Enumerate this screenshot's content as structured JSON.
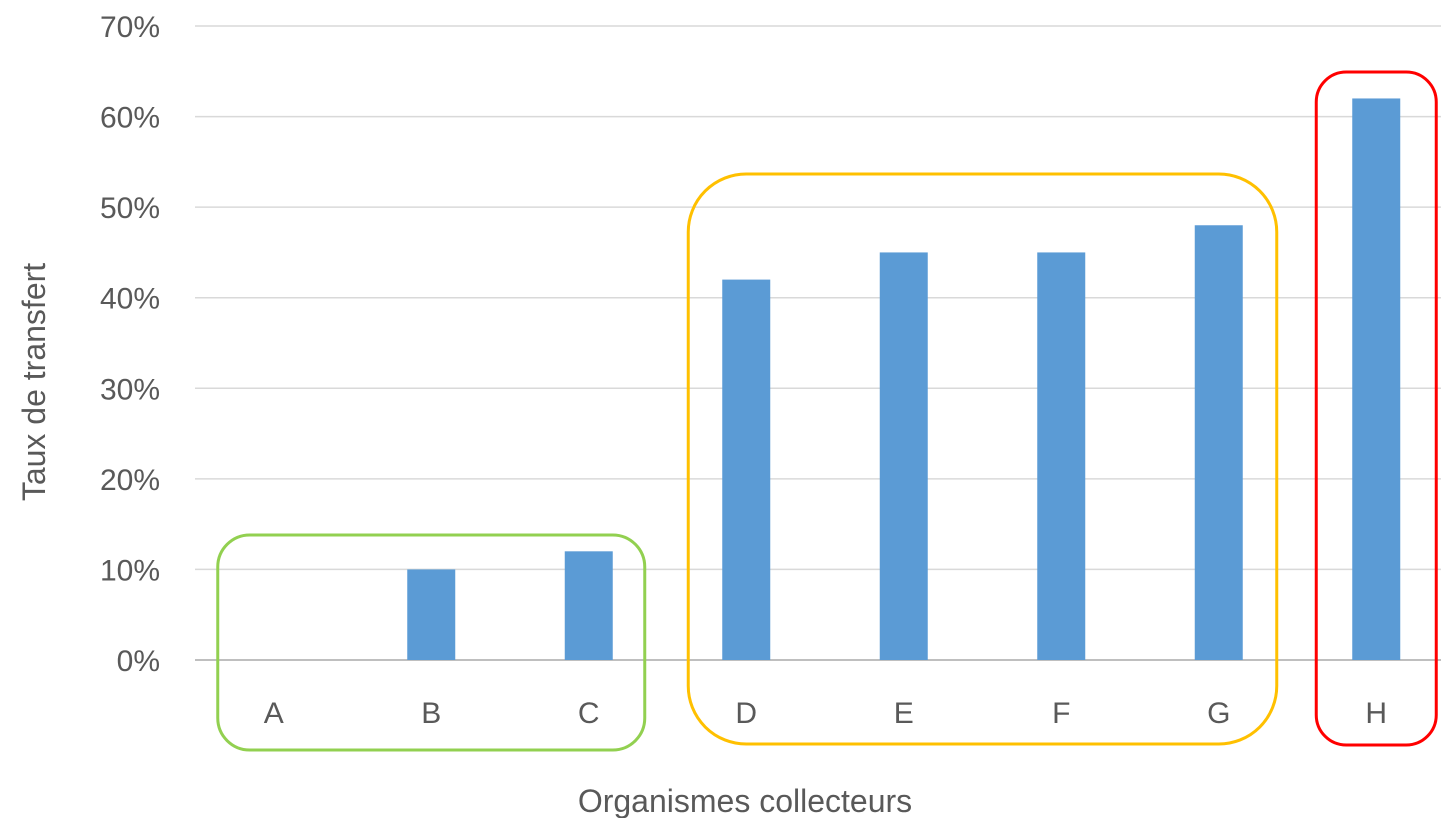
{
  "chart_data": {
    "type": "bar",
    "title": "",
    "xlabel": "Organismes collecteurs",
    "ylabel": "Taux de transfert",
    "categories": [
      "A",
      "B",
      "C",
      "D",
      "E",
      "F",
      "G",
      "H"
    ],
    "values": [
      0,
      10,
      12,
      42,
      45,
      45,
      48,
      62
    ],
    "value_unit": "%",
    "ylim": [
      0,
      70
    ],
    "yticks": [
      "0%",
      "10%",
      "20%",
      "30%",
      "40%",
      "50%",
      "60%",
      "70%"
    ],
    "grid": true,
    "legend": "none",
    "groups": [
      {
        "categories": [
          "A",
          "B",
          "C"
        ],
        "outline_color": "#92d050"
      },
      {
        "categories": [
          "D",
          "E",
          "F",
          "G"
        ],
        "outline_color": "#ffc000"
      },
      {
        "categories": [
          "H"
        ],
        "outline_color": "#ff0000"
      }
    ]
  },
  "colors": {
    "bar": "#5b9bd5",
    "grid": "#d9d9d9",
    "axis": "#bfbfbf",
    "text": "#595959"
  }
}
